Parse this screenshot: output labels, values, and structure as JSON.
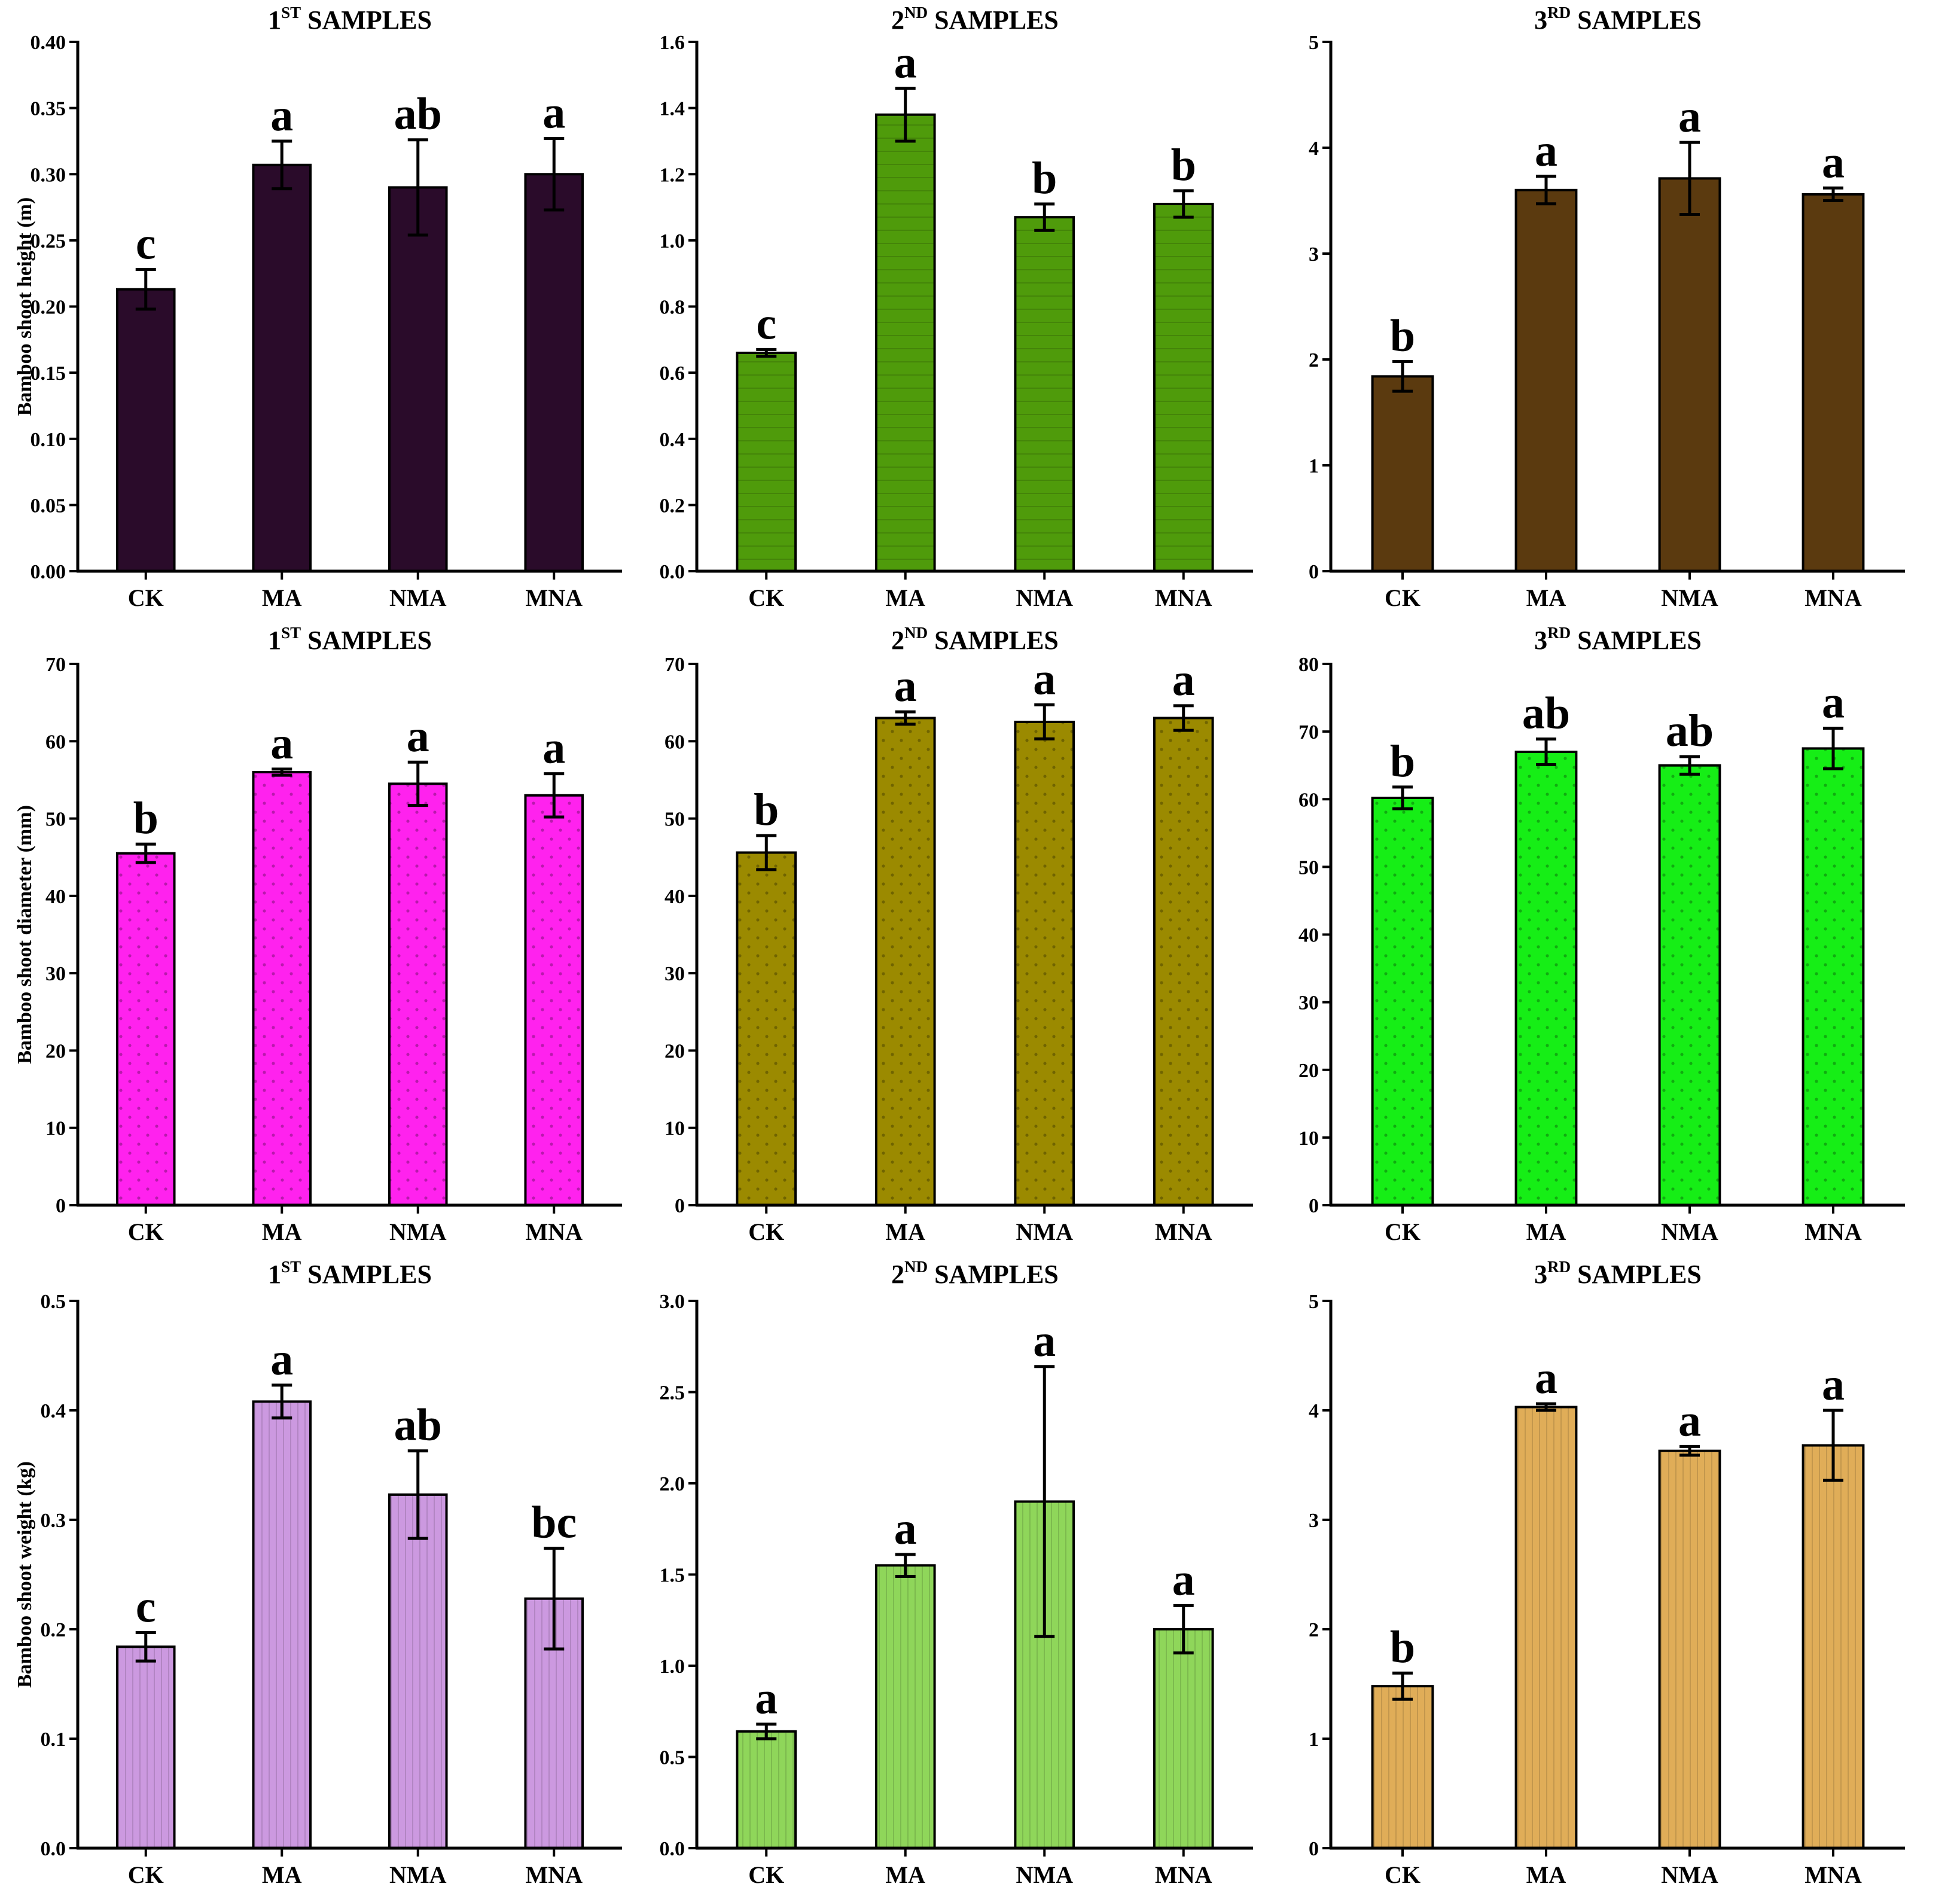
{
  "figure": {
    "row_ylabels": [
      "Bamboo shoot height (m)",
      "Bamboo shoot diameter (mm)",
      "Bamboo shoot weight (kg)"
    ]
  },
  "chart_data": [
    {
      "type": "bar",
      "row": 0,
      "col": 0,
      "title_main": "1",
      "title_sup": "ST",
      "title_rest": " SAMPLES",
      "ylabel": "Bamboo shoot height (m)",
      "categories": [
        "CK",
        "MA",
        "NMA",
        "MNA"
      ],
      "values": [
        0.213,
        0.307,
        0.29,
        0.3
      ],
      "errors": [
        0.015,
        0.018,
        0.036,
        0.027
      ],
      "letters": [
        "c",
        "a",
        "ab",
        "a"
      ],
      "ylim": [
        0,
        0.4
      ],
      "yticks": [
        "0.00",
        "0.05",
        "0.10",
        "0.15",
        "0.20",
        "0.25",
        "0.30",
        "0.35",
        "0.40"
      ],
      "color": "#2a0b2a",
      "pattern": "none"
    },
    {
      "type": "bar",
      "row": 0,
      "col": 1,
      "title_main": "2",
      "title_sup": "ND",
      "title_rest": " SAMPLES",
      "ylabel": "",
      "categories": [
        "CK",
        "MA",
        "NMA",
        "MNA"
      ],
      "values": [
        0.66,
        1.38,
        1.07,
        1.11
      ],
      "errors": [
        0.01,
        0.08,
        0.04,
        0.04
      ],
      "letters": [
        "c",
        "a",
        "b",
        "b"
      ],
      "ylim": [
        0,
        1.6
      ],
      "yticks": [
        "0.0",
        "0.2",
        "0.4",
        "0.6",
        "0.8",
        "1.0",
        "1.2",
        "1.4",
        "1.6"
      ],
      "color": "#4f9b0b",
      "pattern": "hlines"
    },
    {
      "type": "bar",
      "row": 0,
      "col": 2,
      "title_main": "3",
      "title_sup": "RD",
      "title_rest": " SAMPLES",
      "ylabel": "",
      "categories": [
        "CK",
        "MA",
        "NMA",
        "MNA"
      ],
      "values": [
        1.84,
        3.6,
        3.71,
        3.56
      ],
      "errors": [
        0.14,
        0.13,
        0.34,
        0.06
      ],
      "letters": [
        "b",
        "a",
        "a",
        "a"
      ],
      "ylim": [
        0,
        5
      ],
      "yticks": [
        "0",
        "1",
        "2",
        "3",
        "4",
        "5"
      ],
      "color": "#5b3a0f",
      "pattern": "none"
    },
    {
      "type": "bar",
      "row": 1,
      "col": 0,
      "title_main": "1",
      "title_sup": "ST",
      "title_rest": " SAMPLES",
      "ylabel": "Bamboo shoot diameter (mm)",
      "categories": [
        "CK",
        "MA",
        "NMA",
        "MNA"
      ],
      "values": [
        45.5,
        56.0,
        54.5,
        53.0
      ],
      "errors": [
        1.2,
        0.4,
        2.8,
        2.8
      ],
      "letters": [
        "b",
        "a",
        "a",
        "a"
      ],
      "ylim": [
        0,
        70
      ],
      "yticks": [
        "0",
        "10",
        "20",
        "30",
        "40",
        "50",
        "60",
        "70"
      ],
      "color": "#ff22ee",
      "pattern": "dots"
    },
    {
      "type": "bar",
      "row": 1,
      "col": 1,
      "title_main": "2",
      "title_sup": "ND",
      "title_rest": " SAMPLES",
      "ylabel": "",
      "categories": [
        "CK",
        "MA",
        "NMA",
        "MNA"
      ],
      "values": [
        45.6,
        63.0,
        62.5,
        63.0
      ],
      "errors": [
        2.2,
        0.8,
        2.2,
        1.6
      ],
      "letters": [
        "b",
        "a",
        "a",
        "a"
      ],
      "ylim": [
        0,
        70
      ],
      "yticks": [
        "0",
        "10",
        "20",
        "30",
        "40",
        "50",
        "60",
        "70"
      ],
      "color": "#9b8a00",
      "pattern": "dots"
    },
    {
      "type": "bar",
      "row": 1,
      "col": 2,
      "title_main": "3",
      "title_sup": "RD",
      "title_rest": " SAMPLES",
      "ylabel": "",
      "categories": [
        "CK",
        "MA",
        "NMA",
        "MNA"
      ],
      "values": [
        60.2,
        67.0,
        65.0,
        67.5
      ],
      "errors": [
        1.6,
        1.9,
        1.3,
        3.0
      ],
      "letters": [
        "b",
        "ab",
        "ab",
        "a"
      ],
      "ylim": [
        0,
        80
      ],
      "yticks": [
        "0",
        "10",
        "20",
        "30",
        "40",
        "50",
        "60",
        "70",
        "80"
      ],
      "color": "#16ee16",
      "pattern": "dots"
    },
    {
      "type": "bar",
      "row": 2,
      "col": 0,
      "title_main": "1",
      "title_sup": "ST",
      "title_rest": " SAMPLES",
      "ylabel": "Bamboo shoot weight (kg)",
      "categories": [
        "CK",
        "MA",
        "NMA",
        "MNA"
      ],
      "values": [
        0.184,
        0.408,
        0.323,
        0.228
      ],
      "errors": [
        0.013,
        0.015,
        0.04,
        0.046
      ],
      "letters": [
        "c",
        "a",
        "ab",
        "bc"
      ],
      "ylim": [
        0,
        0.5
      ],
      "yticks": [
        "0.0",
        "0.1",
        "0.2",
        "0.3",
        "0.4",
        "0.5"
      ],
      "color": "#cc99e0",
      "pattern": "vlines"
    },
    {
      "type": "bar",
      "row": 2,
      "col": 1,
      "title_main": "2",
      "title_sup": "ND",
      "title_rest": " SAMPLES",
      "ylabel": "",
      "categories": [
        "CK",
        "MA",
        "NMA",
        "MNA"
      ],
      "values": [
        0.64,
        1.55,
        1.9,
        1.2
      ],
      "errors": [
        0.04,
        0.06,
        0.74,
        0.13
      ],
      "letters": [
        "a",
        "a",
        "a",
        "a"
      ],
      "ylim": [
        0,
        3.0
      ],
      "yticks": [
        "0.0",
        "0.5",
        "1.0",
        "1.5",
        "2.0",
        "2.5",
        "3.0"
      ],
      "color": "#8fd65a",
      "pattern": "vlines"
    },
    {
      "type": "bar",
      "row": 2,
      "col": 2,
      "title_main": "3",
      "title_sup": "RD",
      "title_rest": " SAMPLES",
      "ylabel": "",
      "categories": [
        "CK",
        "MA",
        "NMA",
        "MNA"
      ],
      "values": [
        1.48,
        4.03,
        3.63,
        3.68
      ],
      "errors": [
        0.12,
        0.03,
        0.04,
        0.32
      ],
      "letters": [
        "b",
        "a",
        "a",
        "a"
      ],
      "ylim": [
        0,
        5
      ],
      "yticks": [
        "0",
        "1",
        "2",
        "3",
        "4",
        "5"
      ],
      "color": "#e0ad58",
      "pattern": "vlines"
    }
  ]
}
